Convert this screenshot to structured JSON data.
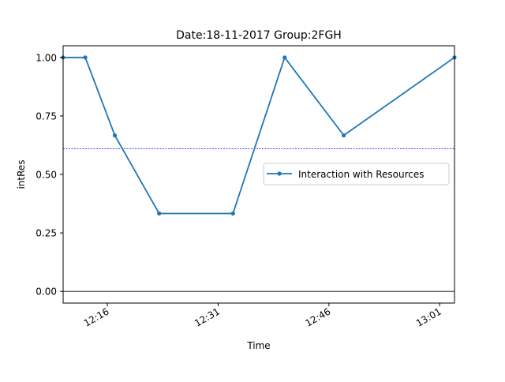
{
  "chart_data": {
    "type": "line",
    "title": "Date:18-11-2017  Group:2FGH",
    "xlabel": "Time",
    "ylabel": "intRes",
    "x_ticks": [
      "12:16",
      "12:31",
      "12:46",
      "13:01"
    ],
    "x_tick_times": [
      "12:16",
      "12:31",
      "12:46",
      "13:01"
    ],
    "xlim": [
      "12:10",
      "13:03"
    ],
    "ylim": [
      -0.05,
      1.05
    ],
    "y_ticks": [
      0.0,
      0.25,
      0.5,
      0.75,
      1.0
    ],
    "y_tick_labels": [
      "0.00",
      "0.25",
      "0.50",
      "0.75",
      "1.00"
    ],
    "grid": false,
    "legend_position": "center-right",
    "series": [
      {
        "name": "Interaction with Resources",
        "color": "#1f77b4",
        "x": [
          "12:10",
          "12:13",
          "12:17",
          "12:23",
          "12:33",
          "12:40",
          "12:48",
          "13:03"
        ],
        "y": [
          1.0,
          1.0,
          0.667,
          0.333,
          0.333,
          1.0,
          0.667,
          1.0
        ]
      }
    ],
    "mean_line": {
      "value": 0.61,
      "color": "#0000ff",
      "style": "dashed"
    },
    "zero_line": {
      "value": 0.0,
      "color": "#000000"
    }
  }
}
